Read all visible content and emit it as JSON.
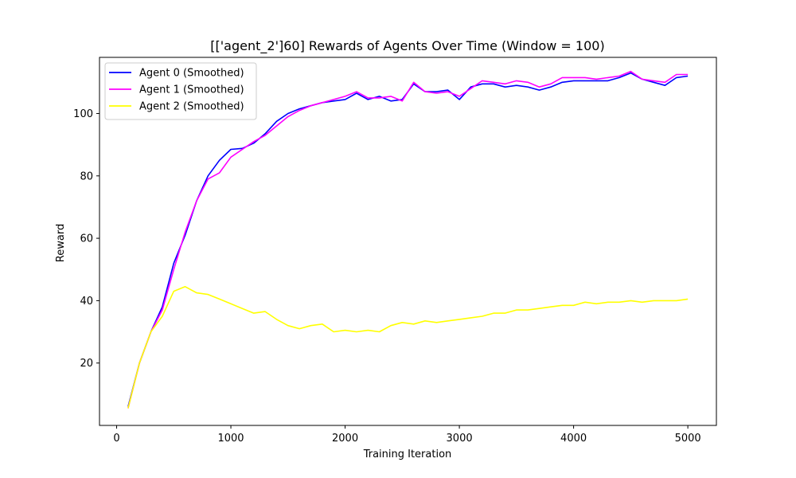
{
  "chart_data": {
    "type": "line",
    "title": "[['agent_2']60] Rewards of Agents Over Time (Window = 100)",
    "xlabel": "Training Iteration",
    "ylabel": "Reward",
    "xlim": [
      -150,
      5250
    ],
    "ylim": [
      0,
      118
    ],
    "xticks": [
      0,
      1000,
      2000,
      3000,
      4000,
      5000
    ],
    "yticks": [
      20,
      40,
      60,
      80,
      100
    ],
    "grid": false,
    "legend_position": "top-left",
    "x": [
      100,
      200,
      300,
      400,
      500,
      600,
      700,
      800,
      900,
      1000,
      1100,
      1200,
      1300,
      1400,
      1500,
      1600,
      1700,
      1800,
      1900,
      2000,
      2100,
      2200,
      2300,
      2400,
      2500,
      2600,
      2700,
      2800,
      2900,
      3000,
      3100,
      3200,
      3300,
      3400,
      3500,
      3600,
      3700,
      3800,
      3900,
      4000,
      4100,
      4200,
      4300,
      4400,
      4500,
      4600,
      4700,
      4800,
      4900,
      5000
    ],
    "series": [
      {
        "name": "Agent 0 (Smoothed)",
        "color": "#0000ff",
        "values": [
          6,
          20,
          30,
          38,
          52,
          61,
          72,
          80,
          85,
          88.5,
          88.8,
          90.5,
          93.5,
          97.5,
          100,
          101.5,
          102.5,
          103.5,
          104,
          104.5,
          106.5,
          104.5,
          105.5,
          104,
          104.5,
          109.5,
          107,
          107,
          107.5,
          104.5,
          108.5,
          109.5,
          109.5,
          108.5,
          109,
          108.5,
          107.5,
          108.5,
          110,
          110.5,
          110.5,
          110.5,
          110.5,
          111.5,
          113,
          111,
          110,
          109,
          111.5,
          112
        ]
      },
      {
        "name": "Agent 1 (Smoothed)",
        "color": "#ff00ff",
        "values": [
          5.5,
          20,
          30,
          37,
          50,
          62,
          72,
          79,
          81,
          86,
          88.5,
          91,
          93,
          96,
          99,
          101,
          102.5,
          103.5,
          104.5,
          105.5,
          107,
          105,
          105,
          105.5,
          104,
          110,
          107,
          106.5,
          107,
          105.5,
          108,
          110.5,
          110,
          109.5,
          110.5,
          110,
          108.5,
          109.5,
          111.5,
          111.5,
          111.5,
          111,
          111.5,
          112,
          113.5,
          111,
          110.5,
          110,
          112.5,
          112.5
        ]
      },
      {
        "name": "Agent 2 (Smoothed)",
        "color": "#ffff00",
        "values": [
          5.5,
          20,
          30,
          35,
          43,
          44.5,
          42.5,
          42,
          40.5,
          39,
          37.5,
          36,
          36.5,
          34,
          32,
          31,
          32,
          32.5,
          30,
          30.5,
          30,
          30.5,
          30,
          32,
          33,
          32.5,
          33.5,
          33,
          33.5,
          34,
          34.5,
          35,
          36,
          36,
          37,
          37,
          37.5,
          38,
          38.5,
          38.5,
          39.5,
          39,
          39.5,
          39.5,
          40,
          39.5,
          40,
          40,
          40,
          40.5
        ]
      }
    ]
  }
}
